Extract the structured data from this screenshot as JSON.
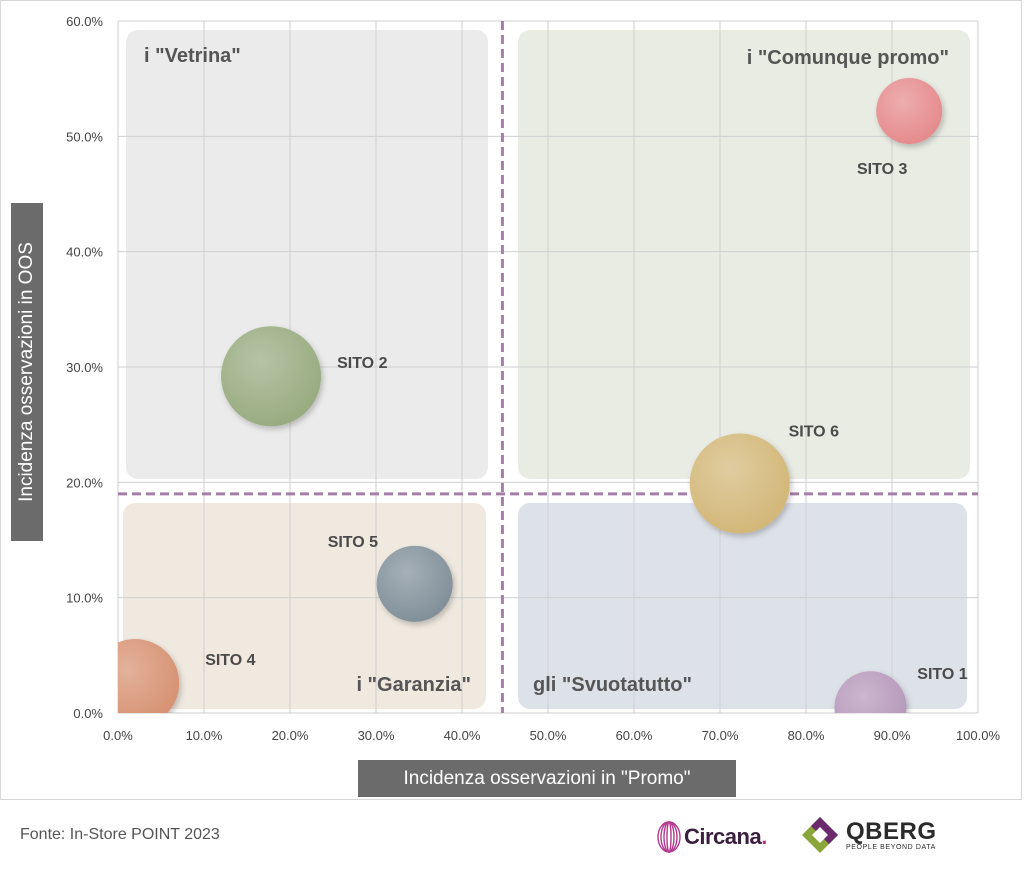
{
  "chart_data": {
    "type": "scatter",
    "xlabel": "Incidenza osservazioni in \"Promo\"",
    "ylabel": "Incidenza osservazioni in OOS",
    "xlim": [
      0,
      100
    ],
    "ylim": [
      0,
      60
    ],
    "x_ticks": [
      "0.0%",
      "10.0%",
      "20.0%",
      "30.0%",
      "40.0%",
      "50.0%",
      "60.0%",
      "70.0%",
      "80.0%",
      "90.0%",
      "100.0%"
    ],
    "y_ticks": [
      "0.0%",
      "10.0%",
      "20.0%",
      "30.0%",
      "40.0%",
      "50.0%",
      "60.0%"
    ],
    "grid": true,
    "reference_lines": {
      "x": 44.7,
      "y": 19.0
    },
    "quadrants": [
      {
        "label": "i \"Vetrina\"",
        "color": "#ebebeb"
      },
      {
        "label": "i \"Comunque promo\"",
        "color": "#e9ece3"
      },
      {
        "label": "i \"Garanzia\"",
        "color": "#efe9df"
      },
      {
        "label": "gli \"Svuotatutto\"",
        "color": "#dde1e8"
      }
    ],
    "points": [
      {
        "name": "SITO 1",
        "x": 87.5,
        "y": 0.5,
        "color": "#b597b9"
      },
      {
        "name": "SITO 2",
        "x": 17.8,
        "y": 29.2,
        "color": "#97aa7e"
      },
      {
        "name": "SITO 3",
        "x": 92.0,
        "y": 52.2,
        "color": "#e5898b"
      },
      {
        "name": "SITO 4",
        "x": 2.0,
        "y": 2.6,
        "color": "#d6906f"
      },
      {
        "name": "SITO 5",
        "x": 34.5,
        "y": 11.2,
        "color": "#7f8e98"
      },
      {
        "name": "SITO 6",
        "x": 72.3,
        "y": 19.9,
        "color": "#d2b676"
      }
    ]
  },
  "source": "Fonte: In-Store POINT 2023",
  "logos": {
    "circana": "Circana",
    "circana_dot": ".",
    "qberg": "QBERG",
    "qberg_tagline": "PEOPLE BEYOND DATA"
  }
}
